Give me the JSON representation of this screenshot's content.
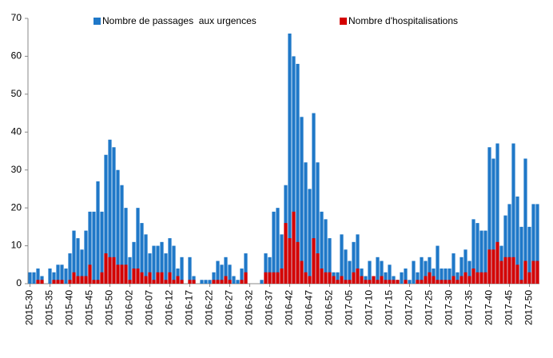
{
  "chart_data": {
    "type": "bar",
    "overlap": true,
    "categories": [
      "2015-30",
      null,
      null,
      null,
      null,
      "2015-35",
      null,
      null,
      null,
      null,
      "2015-40",
      null,
      null,
      null,
      null,
      "2015-45",
      null,
      null,
      null,
      null,
      "2015-50",
      null,
      null,
      null,
      null,
      "2016-02",
      null,
      null,
      null,
      null,
      "2016-07",
      null,
      null,
      null,
      null,
      "2016-12",
      null,
      null,
      null,
      null,
      "2016-17",
      null,
      null,
      null,
      null,
      "2016-22",
      null,
      null,
      null,
      null,
      "2016-27",
      null,
      null,
      null,
      null,
      "2016-32",
      null,
      null,
      null,
      null,
      "2016-37",
      null,
      null,
      null,
      null,
      "2016-42",
      null,
      null,
      null,
      null,
      "2016-47",
      null,
      null,
      null,
      null,
      "2016-52",
      null,
      null,
      null,
      null,
      "2017-05",
      null,
      null,
      null,
      null,
      "2017-10",
      null,
      null,
      null,
      null,
      "2017-15",
      null,
      null,
      null,
      null,
      "2017-20",
      null,
      null,
      null,
      null,
      "2017-25",
      null,
      null,
      null,
      null,
      "2017-30",
      null,
      null,
      null,
      null,
      "2017-35",
      null,
      null,
      null,
      null,
      "2017-40",
      null,
      null,
      null,
      null,
      "2017-45",
      null,
      null,
      null,
      null,
      "2017-50",
      null,
      null
    ],
    "series": [
      {
        "name": "Nombre de passages  aux urgences",
        "color": "#1f78c8",
        "values": [
          3,
          3,
          4,
          2,
          0,
          4,
          3,
          5,
          5,
          4,
          8,
          14,
          12,
          9,
          14,
          19,
          19,
          27,
          19,
          34,
          38,
          36,
          30,
          26,
          20,
          7,
          11,
          20,
          16,
          13,
          8,
          10,
          10,
          11,
          8,
          12,
          10,
          4,
          7,
          0,
          7,
          2,
          0,
          1,
          1,
          1,
          3,
          6,
          5,
          7,
          5,
          2,
          1,
          4,
          8,
          0,
          0,
          0,
          1,
          8,
          7,
          19,
          20,
          13,
          26,
          66,
          60,
          58,
          44,
          32,
          25,
          45,
          32,
          19,
          17,
          12,
          3,
          3,
          13,
          9,
          6,
          11,
          13,
          4,
          2,
          6,
          2,
          7,
          6,
          3,
          5,
          2,
          1,
          3,
          4,
          1,
          6,
          3,
          7,
          6,
          7,
          4,
          10,
          4,
          4,
          4,
          8,
          3,
          7,
          9,
          6,
          17,
          16,
          14,
          14,
          36,
          33,
          37,
          10,
          18,
          21,
          37,
          23,
          15,
          33,
          15,
          21,
          21
        ]
      },
      {
        "name": "Nombre d'hospitalisations",
        "color": "#d40000",
        "values": [
          0,
          0,
          1,
          1,
          0,
          0,
          1,
          1,
          1,
          0,
          1,
          3,
          2,
          2,
          2,
          5,
          1,
          1,
          3,
          8,
          7,
          7,
          5,
          5,
          5,
          1,
          4,
          4,
          3,
          2,
          3,
          1,
          3,
          3,
          1,
          3,
          1,
          2,
          1,
          0,
          1,
          1,
          0,
          0,
          0,
          0,
          1,
          1,
          1,
          2,
          1,
          0,
          0,
          1,
          3,
          0,
          0,
          0,
          0,
          3,
          3,
          3,
          3,
          4,
          16,
          12,
          19,
          11,
          6,
          3,
          2,
          12,
          8,
          4,
          3,
          3,
          2,
          1,
          2,
          1,
          1,
          3,
          4,
          2,
          1,
          1,
          2,
          1,
          2,
          1,
          1,
          1,
          1,
          0,
          1,
          0,
          0,
          1,
          1,
          2,
          3,
          2,
          1,
          1,
          1,
          1,
          2,
          1,
          2,
          3,
          2,
          4,
          3,
          3,
          3,
          9,
          9,
          11,
          6,
          7,
          7,
          7,
          5,
          1,
          6,
          3,
          6,
          6
        ]
      }
    ],
    "ylim": [
      0,
      70
    ],
    "yticks": [
      0,
      10,
      20,
      30,
      40,
      50,
      60,
      70
    ],
    "grid": false,
    "legend": "top"
  }
}
